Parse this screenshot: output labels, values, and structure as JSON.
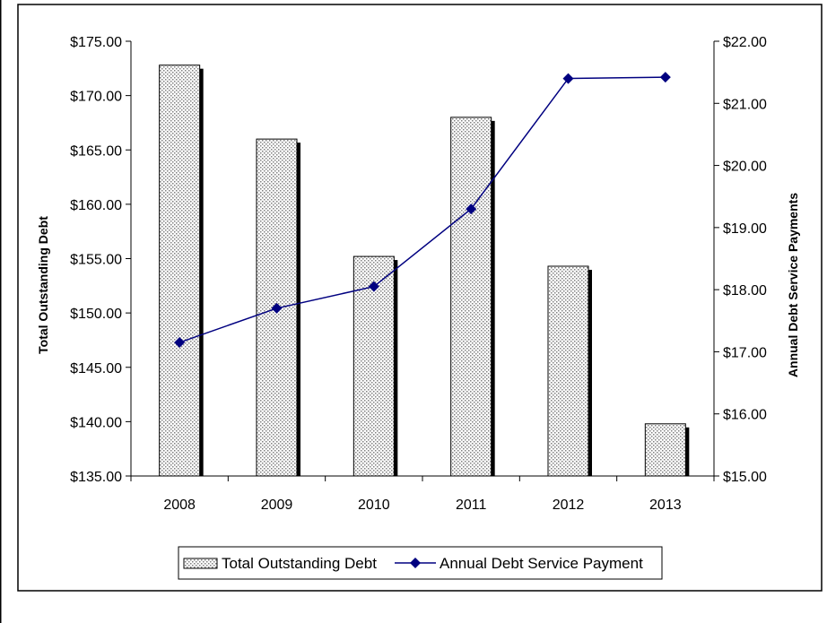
{
  "chart_data": {
    "type": "bar",
    "categories": [
      "2008",
      "2009",
      "2010",
      "2011",
      "2012",
      "2013"
    ],
    "series": [
      {
        "name": "Total Outstanding Debt",
        "type": "bar",
        "axis": "left",
        "values": [
          172.8,
          166.0,
          155.2,
          168.0,
          154.3,
          139.8
        ]
      },
      {
        "name": "Annual Debt Service Payment",
        "type": "line",
        "axis": "right",
        "values": [
          17.15,
          17.7,
          18.05,
          19.3,
          21.4,
          21.42
        ]
      }
    ],
    "ylabel": "Total Outstanding Debt",
    "ylim": [
      135,
      175
    ],
    "yticks": [
      "$135.00",
      "$140.00",
      "$145.00",
      "$150.00",
      "$155.00",
      "$160.00",
      "$165.00",
      "$170.00",
      "$175.00"
    ],
    "y2label": "Annual Debt Service Payments",
    "y2lim": [
      15,
      22
    ],
    "y2ticks": [
      "$15.00",
      "$16.00",
      "$17.00",
      "$18.00",
      "$19.00",
      "$20.00",
      "$21.00",
      "$22.00"
    ],
    "grid": false,
    "legend_position": "bottom",
    "colors": {
      "line": "#000080",
      "bar_fill": "#ffffff",
      "bar_dots": "#808080",
      "bar_shadow": "#000000"
    }
  }
}
